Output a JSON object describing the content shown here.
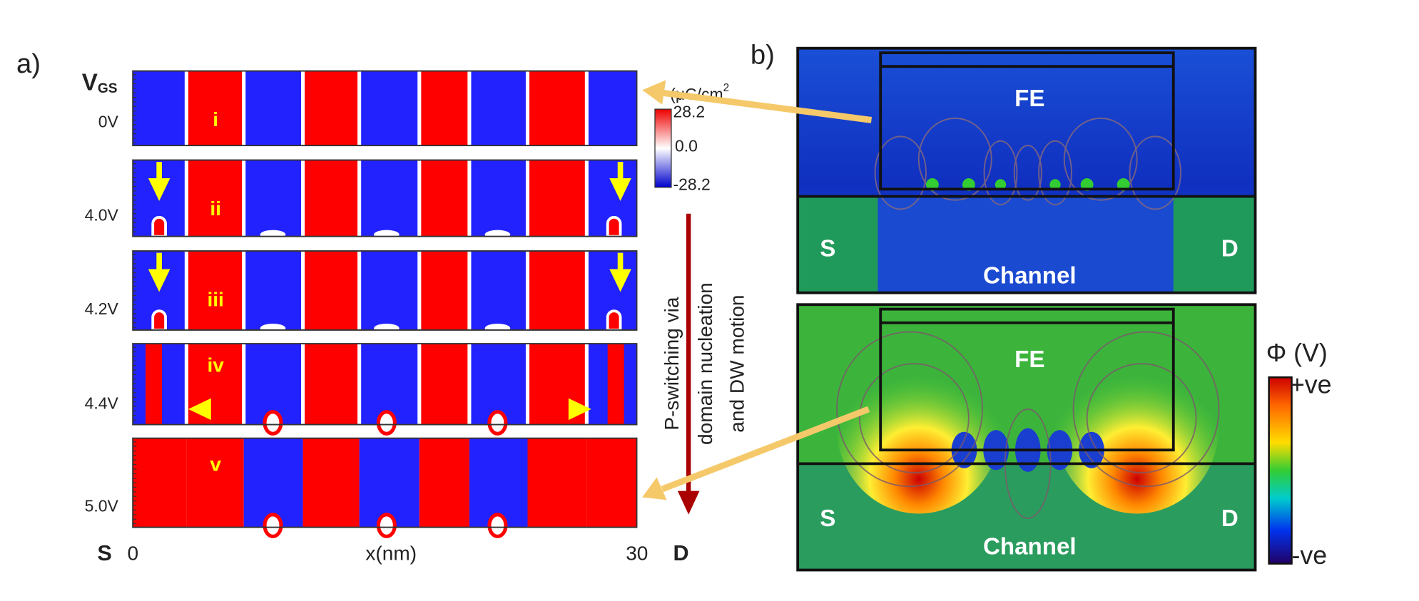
{
  "panel_a": {
    "label": "a)",
    "vgs": {
      "main": "V",
      "sub": "GS"
    },
    "rows": [
      {
        "voltage": "0V",
        "tag": "i"
      },
      {
        "voltage": "4.0V",
        "tag": "ii"
      },
      {
        "voltage": "4.2V",
        "tag": "iii"
      },
      {
        "voltage": "4.4V",
        "tag": "iv"
      },
      {
        "voltage": "5.0V",
        "tag": "v"
      }
    ],
    "colorbar": {
      "title": "P (μC/cm",
      "title_sup": "2",
      "ticks": [
        "28.2",
        "0.0",
        "-28.2"
      ]
    },
    "axis": {
      "left": "S",
      "start": "0",
      "label": "x(nm)",
      "end": "30",
      "right": "D"
    },
    "arrow_text": [
      "P-switching via",
      "domain nucleation",
      "and DW motion"
    ]
  },
  "panel_b": {
    "label": "b)",
    "top": {
      "fe": "FE",
      "source": "S",
      "drain": "D",
      "channel": "Channel"
    },
    "bottom": {
      "fe": "FE",
      "source": "S",
      "drain": "D",
      "channel": "Channel"
    },
    "colorbar": {
      "title": "Φ (V)",
      "max": "+ve",
      "min": "-ve"
    }
  }
}
